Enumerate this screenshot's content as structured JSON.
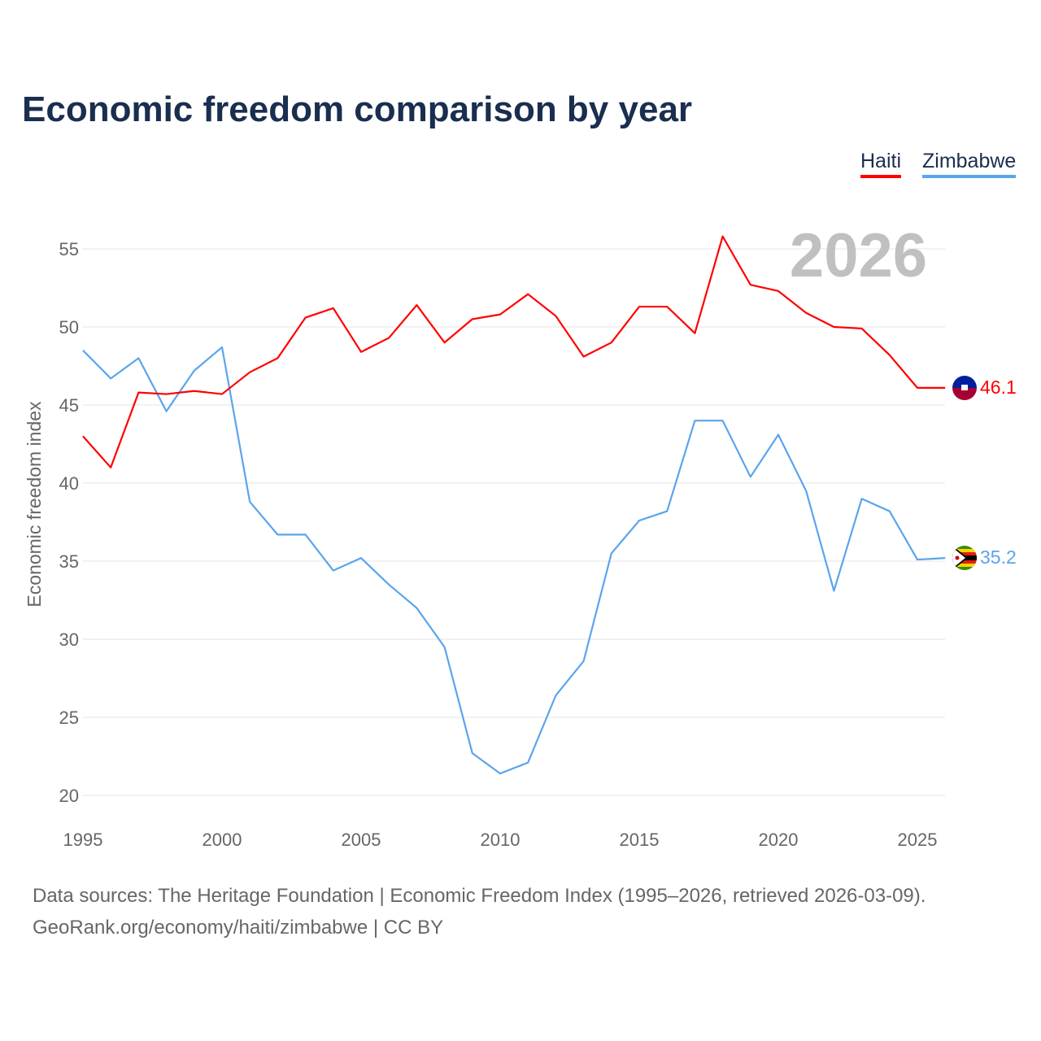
{
  "title": "Economic freedom comparison by year",
  "chart_data": {
    "type": "line",
    "title": "Economic freedom comparison by year",
    "xlabel": "",
    "ylabel": "Economic freedom index",
    "xlim": [
      1995,
      2026
    ],
    "ylim": [
      20,
      56.5
    ],
    "yticks": [
      20,
      25,
      30,
      35,
      40,
      45,
      50,
      55
    ],
    "xticks": [
      1995,
      2000,
      2005,
      2010,
      2015,
      2020,
      2025
    ],
    "year_watermark": "2026",
    "legend_position": "top-right",
    "x": [
      1995,
      1996,
      1997,
      1998,
      1999,
      2000,
      2001,
      2002,
      2003,
      2004,
      2005,
      2006,
      2007,
      2008,
      2009,
      2010,
      2011,
      2012,
      2013,
      2014,
      2015,
      2016,
      2017,
      2018,
      2019,
      2020,
      2021,
      2022,
      2023,
      2024,
      2025,
      2026
    ],
    "series": [
      {
        "name": "Haiti",
        "color": "#ff0000",
        "end_label": "46.1",
        "values": [
          43.0,
          41.0,
          45.8,
          45.7,
          45.9,
          45.7,
          47.1,
          48.0,
          50.6,
          51.2,
          48.4,
          49.3,
          51.4,
          49.0,
          50.5,
          50.8,
          52.1,
          50.7,
          48.1,
          49.0,
          51.3,
          51.3,
          49.6,
          55.8,
          52.7,
          52.3,
          50.9,
          50.0,
          49.9,
          48.2,
          46.1,
          46.1
        ]
      },
      {
        "name": "Zimbabwe",
        "color": "#5ba4ec",
        "end_label": "35.2",
        "values": [
          48.5,
          46.7,
          48.0,
          44.6,
          47.2,
          48.7,
          38.8,
          36.7,
          36.7,
          34.4,
          35.2,
          33.5,
          32.0,
          29.5,
          22.7,
          21.4,
          22.1,
          26.4,
          28.6,
          35.5,
          37.6,
          38.2,
          44.0,
          44.0,
          40.4,
          43.1,
          39.5,
          33.1,
          39.0,
          38.2,
          35.1,
          35.2
        ]
      }
    ]
  },
  "footer": {
    "line1": "Data sources: The Heritage Foundation | Economic Freedom Index (1995–2026, retrieved 2026-03-09).",
    "line2": "GeoRank.org/economy/haiti/zimbabwe | CC BY"
  }
}
